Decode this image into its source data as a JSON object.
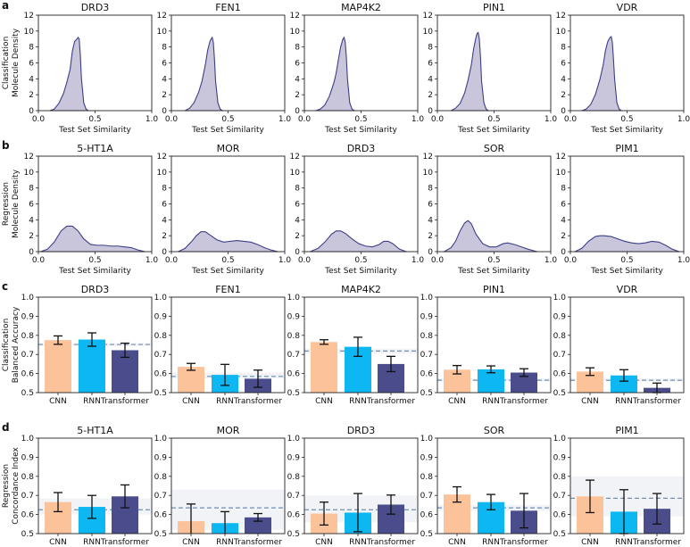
{
  "panel_letters": [
    "a",
    "b",
    "c",
    "d"
  ],
  "colors": {
    "CNN": "#fcc39a",
    "RNN": "#0db8f2",
    "Transformer": "#4a4c8c",
    "kde_fill": "#c9c6dc",
    "kde_line": "#3d3f86",
    "baseline": "#6f8fb8"
  },
  "chart_data": [
    {
      "id": "a",
      "type": "area",
      "ylabel": [
        "Classification",
        "Molecule Density"
      ],
      "xlabel": "Test Set Similarity",
      "xlim": [
        0.0,
        1.0
      ],
      "ylim": [
        0,
        12
      ],
      "xticks": [
        "0.0",
        "0.5",
        "1.0"
      ],
      "yticks": [
        "0",
        "2",
        "4",
        "6",
        "8",
        "10",
        "12"
      ],
      "subplots": [
        {
          "title": "DRD3",
          "x": [
            0.1,
            0.14,
            0.18,
            0.22,
            0.25,
            0.28,
            0.3,
            0.32,
            0.34,
            0.35,
            0.36,
            0.37,
            0.38,
            0.4,
            0.42,
            0.44
          ],
          "y": [
            0,
            0.2,
            0.9,
            2.1,
            3.5,
            5.2,
            7.5,
            8.7,
            9.0,
            9.2,
            9.0,
            7.0,
            4.0,
            1.0,
            0.2,
            0
          ]
        },
        {
          "title": "FEN1",
          "x": [
            0.12,
            0.16,
            0.2,
            0.24,
            0.27,
            0.3,
            0.32,
            0.34,
            0.35,
            0.36,
            0.37,
            0.38,
            0.39,
            0.41,
            0.43,
            0.45
          ],
          "y": [
            0,
            0.3,
            1.0,
            2.3,
            3.7,
            5.8,
            7.6,
            8.7,
            9.0,
            9.2,
            8.6,
            6.5,
            3.7,
            1.0,
            0.2,
            0
          ]
        },
        {
          "title": "MAP4K2",
          "x": [
            0.1,
            0.14,
            0.18,
            0.22,
            0.26,
            0.28,
            0.3,
            0.32,
            0.34,
            0.35,
            0.36,
            0.37,
            0.38,
            0.4,
            0.42,
            0.44
          ],
          "y": [
            0,
            0.2,
            0.7,
            1.8,
            3.5,
            4.7,
            6.4,
            8.0,
            9.0,
            9.2,
            8.6,
            6.8,
            4.0,
            1.0,
            0.2,
            0
          ]
        },
        {
          "title": "PIN1",
          "x": [
            0.12,
            0.16,
            0.2,
            0.24,
            0.27,
            0.3,
            0.32,
            0.34,
            0.35,
            0.36,
            0.37,
            0.38,
            0.39,
            0.41,
            0.43,
            0.45
          ],
          "y": [
            0,
            0.3,
            0.9,
            2.2,
            3.8,
            5.8,
            7.8,
            9.2,
            9.7,
            9.8,
            9.0,
            6.8,
            3.7,
            1.0,
            0.2,
            0
          ]
        },
        {
          "title": "VDR",
          "x": [
            0.1,
            0.14,
            0.18,
            0.22,
            0.26,
            0.29,
            0.31,
            0.33,
            0.35,
            0.36,
            0.37,
            0.38,
            0.39,
            0.41,
            0.43,
            0.45
          ],
          "y": [
            0,
            0.2,
            0.8,
            2.0,
            3.9,
            5.8,
            7.6,
            8.7,
            9.2,
            9.3,
            8.6,
            6.5,
            4.0,
            1.0,
            0.2,
            0
          ]
        }
      ]
    },
    {
      "id": "b",
      "type": "area",
      "ylabel": [
        "Regression",
        "Molecule Density"
      ],
      "xlabel": "Test Set Similarity",
      "xlim": [
        0.0,
        1.0
      ],
      "ylim": [
        0,
        12
      ],
      "xticks": [
        "0.0",
        "0.5",
        "1.0"
      ],
      "yticks": [
        "0",
        "2",
        "4",
        "6",
        "8",
        "10",
        "12"
      ],
      "subplots": [
        {
          "title": "5-HT1A",
          "x": [
            0.02,
            0.08,
            0.14,
            0.2,
            0.25,
            0.3,
            0.35,
            0.4,
            0.46,
            0.52,
            0.58,
            0.64,
            0.7,
            0.76,
            0.82,
            0.88,
            0.94
          ],
          "y": [
            0,
            0.3,
            1.2,
            2.6,
            3.2,
            3.2,
            2.6,
            1.6,
            0.9,
            0.8,
            0.8,
            0.7,
            0.7,
            0.6,
            0.5,
            0.2,
            0
          ]
        },
        {
          "title": "MOR",
          "x": [
            0.06,
            0.12,
            0.18,
            0.22,
            0.26,
            0.3,
            0.34,
            0.4,
            0.46,
            0.52,
            0.58,
            0.64,
            0.7,
            0.76,
            0.82,
            0.88,
            0.94
          ],
          "y": [
            0,
            0.4,
            1.3,
            2.0,
            2.5,
            2.5,
            2.1,
            1.5,
            1.2,
            1.3,
            1.4,
            1.3,
            1.2,
            0.9,
            0.5,
            0.2,
            0
          ]
        },
        {
          "title": "DRD3",
          "x": [
            0.05,
            0.12,
            0.18,
            0.24,
            0.28,
            0.32,
            0.36,
            0.42,
            0.48,
            0.54,
            0.6,
            0.66,
            0.7,
            0.74,
            0.78,
            0.84,
            0.9
          ],
          "y": [
            0,
            0.4,
            1.2,
            2.2,
            2.6,
            2.6,
            2.3,
            1.6,
            1.0,
            0.7,
            0.6,
            0.9,
            1.3,
            1.3,
            1.0,
            0.3,
            0
          ]
        },
        {
          "title": "SOR",
          "x": [
            0.06,
            0.12,
            0.16,
            0.2,
            0.24,
            0.27,
            0.3,
            0.34,
            0.4,
            0.46,
            0.52,
            0.58,
            0.62,
            0.68,
            0.74,
            0.8,
            0.88
          ],
          "y": [
            0,
            0.5,
            1.3,
            2.6,
            3.6,
            3.9,
            3.5,
            2.2,
            1.0,
            0.6,
            0.6,
            1.0,
            1.1,
            0.9,
            0.6,
            0.3,
            0
          ]
        },
        {
          "title": "PIM1",
          "x": [
            0.04,
            0.1,
            0.16,
            0.22,
            0.26,
            0.3,
            0.36,
            0.42,
            0.48,
            0.54,
            0.6,
            0.66,
            0.72,
            0.78,
            0.84,
            0.9,
            0.96
          ],
          "y": [
            0,
            0.4,
            1.3,
            1.9,
            2.0,
            2.0,
            1.9,
            1.6,
            1.3,
            1.1,
            1.0,
            1.1,
            1.3,
            1.2,
            0.8,
            0.3,
            0
          ]
        }
      ]
    },
    {
      "id": "c",
      "type": "bar",
      "ylabel": [
        "Classification",
        "Balanced Accuracy"
      ],
      "categories": [
        "CNN",
        "RNN",
        "Transformer"
      ],
      "ylim": [
        0.5,
        1.0
      ],
      "yticks": [
        "0.5",
        "0.6",
        "0.7",
        "0.8",
        "0.9",
        "1.0"
      ],
      "subplots": [
        {
          "title": "DRD3",
          "values": [
            0.775,
            0.778,
            0.722
          ],
          "errors": [
            0.022,
            0.035,
            0.037
          ],
          "baseline": 0.752,
          "band": [
            0.745,
            0.76
          ]
        },
        {
          "title": "FEN1",
          "values": [
            0.635,
            0.593,
            0.573
          ],
          "errors": [
            0.018,
            0.055,
            0.045
          ],
          "baseline": 0.585,
          "band": [
            0.575,
            0.605
          ]
        },
        {
          "title": "MAP4K2",
          "values": [
            0.765,
            0.74,
            0.65
          ],
          "errors": [
            0.012,
            0.05,
            0.04
          ],
          "baseline": 0.718,
          "band": [
            0.705,
            0.73
          ]
        },
        {
          "title": "PIN1",
          "values": [
            0.62,
            0.622,
            0.605
          ],
          "errors": [
            0.022,
            0.018,
            0.02
          ],
          "baseline": 0.565,
          "band": [
            0.56,
            0.575
          ]
        },
        {
          "title": "VDR",
          "values": [
            0.61,
            0.59,
            0.525
          ],
          "errors": [
            0.02,
            0.03,
            0.025
          ],
          "baseline": 0.565,
          "band": [
            0.56,
            0.575
          ]
        }
      ]
    },
    {
      "id": "d",
      "type": "bar",
      "ylabel": [
        "Regression",
        "Concordance Index"
      ],
      "categories": [
        "CNN",
        "RNN",
        "Transformer"
      ],
      "ylim": [
        0.5,
        1.0
      ],
      "yticks": [
        "0.5",
        "0.6",
        "0.7",
        "0.8",
        "0.9",
        "1.0"
      ],
      "subplots": [
        {
          "title": "5-HT1A",
          "values": [
            0.665,
            0.64,
            0.695
          ],
          "errors": [
            0.05,
            0.06,
            0.06
          ],
          "baseline": 0.625,
          "band": [
            0.6,
            0.685
          ]
        },
        {
          "title": "MOR",
          "values": [
            0.565,
            0.555,
            0.585
          ],
          "errors": [
            0.09,
            0.06,
            0.02
          ],
          "baseline": 0.635,
          "band": [
            0.52,
            0.73
          ]
        },
        {
          "title": "DRD3",
          "values": [
            0.605,
            0.61,
            0.652
          ],
          "errors": [
            0.06,
            0.1,
            0.05
          ],
          "baseline": 0.625,
          "band": [
            0.56,
            0.7
          ]
        },
        {
          "title": "SOR",
          "values": [
            0.705,
            0.665,
            0.62
          ],
          "errors": [
            0.04,
            0.04,
            0.09
          ],
          "baseline": 0.635,
          "band": [
            0.62,
            0.65
          ]
        },
        {
          "title": "PIM1",
          "values": [
            0.695,
            0.615,
            0.63
          ],
          "errors": [
            0.085,
            0.115,
            0.08
          ],
          "baseline": 0.685,
          "band": [
            0.59,
            0.8
          ]
        }
      ]
    }
  ]
}
